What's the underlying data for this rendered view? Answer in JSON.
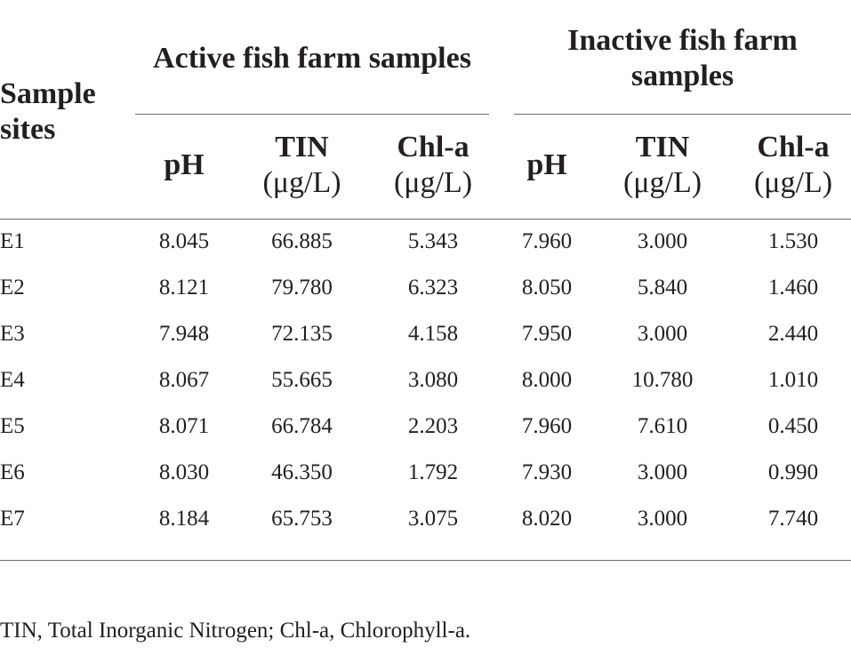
{
  "header": {
    "sample_sites": "Sample sites",
    "sample_sites_l1": "Sample",
    "sample_sites_l2": "sites",
    "active_group": "Active fish farm samples",
    "inactive_group_l1": "Inactive fish farm",
    "inactive_group_l2": "samples",
    "columns": [
      {
        "l1": "pH",
        "l2": ""
      },
      {
        "l1": "TIN",
        "l2": "(μg/L)"
      },
      {
        "l1": "Chl-a",
        "l2": "(μg/L)"
      },
      {
        "l1": "pH",
        "l2": ""
      },
      {
        "l1": "TIN",
        "l2": "(μg/L)"
      },
      {
        "l1": "Chl-a",
        "l2": "(μg/L)"
      }
    ]
  },
  "rows": [
    {
      "site": "E1",
      "values": [
        "8.045",
        "66.885",
        "5.343",
        "7.960",
        "3.000",
        "1.530"
      ]
    },
    {
      "site": "E2",
      "values": [
        "8.121",
        "79.780",
        "6.323",
        "8.050",
        "5.840",
        "1.460"
      ]
    },
    {
      "site": "E3",
      "values": [
        "7.948",
        "72.135",
        "4.158",
        "7.950",
        "3.000",
        "2.440"
      ]
    },
    {
      "site": "E4",
      "values": [
        "8.067",
        "55.665",
        "3.080",
        "8.000",
        "10.780",
        "1.010"
      ]
    },
    {
      "site": "E5",
      "values": [
        "8.071",
        "66.784",
        "2.203",
        "7.960",
        "7.610",
        "0.450"
      ]
    },
    {
      "site": "E6",
      "values": [
        "8.030",
        "46.350",
        "1.792",
        "7.930",
        "3.000",
        "0.990"
      ]
    },
    {
      "site": "E7",
      "values": [
        "8.184",
        "65.753",
        "3.075",
        "8.020",
        "3.000",
        "7.740"
      ]
    }
  ],
  "footnote": "TIN, Total Inorganic Nitrogen; Chl-a, Chlorophyll-a."
}
